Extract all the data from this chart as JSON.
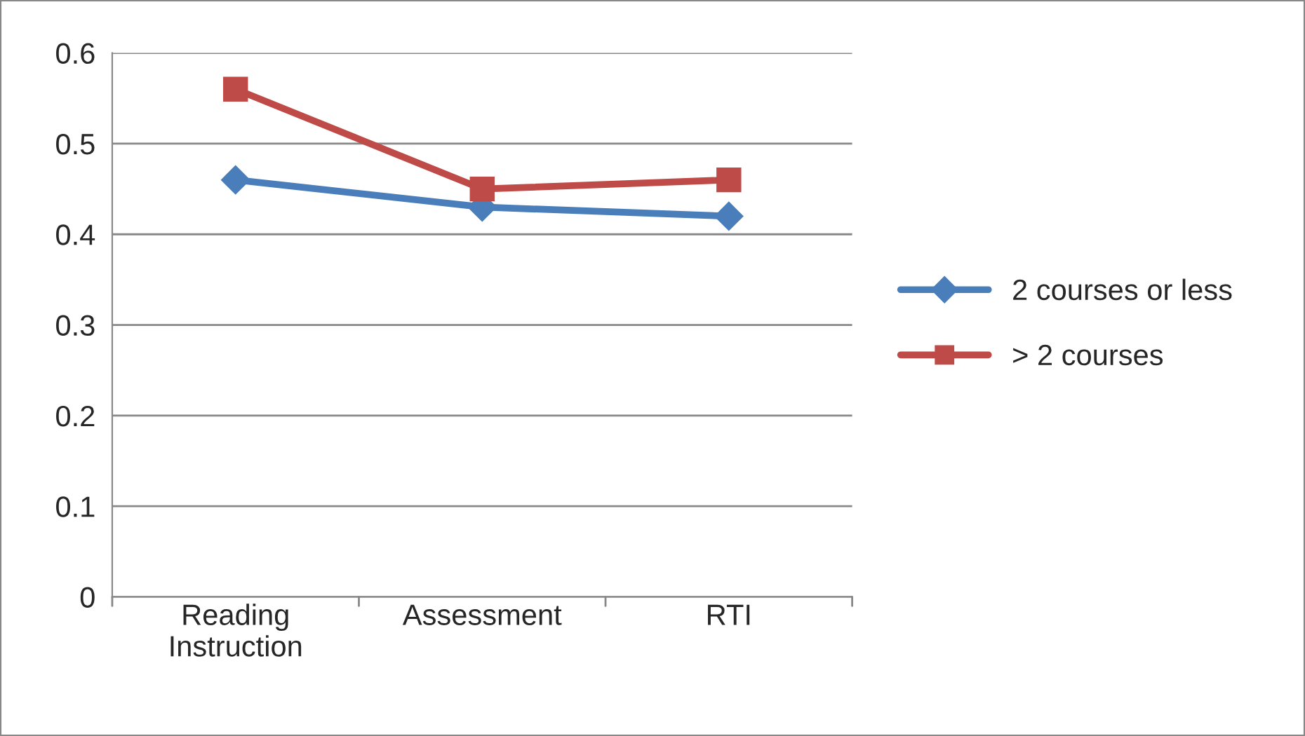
{
  "chart_data": {
    "type": "line",
    "categories": [
      "Reading\nInstruction",
      "Assessment",
      "RTI"
    ],
    "series": [
      {
        "name": "2 courses or less",
        "color": "#4a7ebb",
        "marker": "diamond",
        "values": [
          0.46,
          0.43,
          0.42
        ]
      },
      {
        "name": "> 2 courses",
        "color": "#be4b48",
        "marker": "square",
        "values": [
          0.56,
          0.45,
          0.46
        ]
      }
    ],
    "ylim": [
      0,
      0.6
    ],
    "yticks": [
      0,
      0.1,
      0.2,
      0.3,
      0.4,
      0.5,
      0.6
    ],
    "grid": "y",
    "legend": "right",
    "line_style": "solid"
  }
}
